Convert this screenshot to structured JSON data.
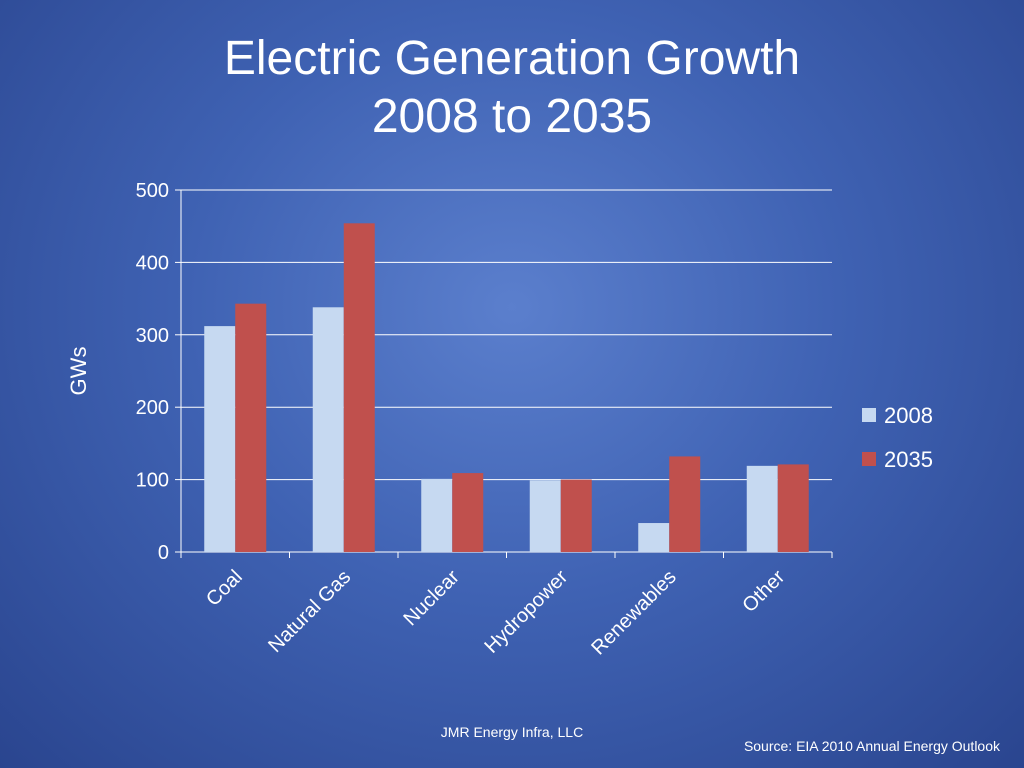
{
  "slide": {
    "title_line1": "Electric Generation Growth",
    "title_line2": "2008 to 2035",
    "footer_company": "JMR Energy Infra, LLC",
    "footer_source": "Source: EIA 2010 Annual Energy Outlook"
  },
  "colors": {
    "series_2008": "#c6d9f1",
    "series_2035": "#c0504d",
    "gridline": "#ffffff",
    "text": "#ffffff"
  },
  "chart_data": {
    "type": "bar",
    "title": "Electric Generation Growth 2008 to 2035",
    "xlabel": "",
    "ylabel": "GWs",
    "ylim": [
      0,
      500
    ],
    "yticks": [
      0,
      100,
      200,
      300,
      400,
      500
    ],
    "grid": true,
    "legend_position": "right",
    "categories": [
      "Coal",
      "Natural Gas",
      "Nuclear",
      "Hydropower",
      "Renewables",
      "Other"
    ],
    "series": [
      {
        "name": "2008",
        "values": [
          312,
          338,
          101,
          99,
          40,
          119
        ]
      },
      {
        "name": "2035",
        "values": [
          343,
          454,
          109,
          100,
          132,
          121
        ]
      }
    ]
  }
}
